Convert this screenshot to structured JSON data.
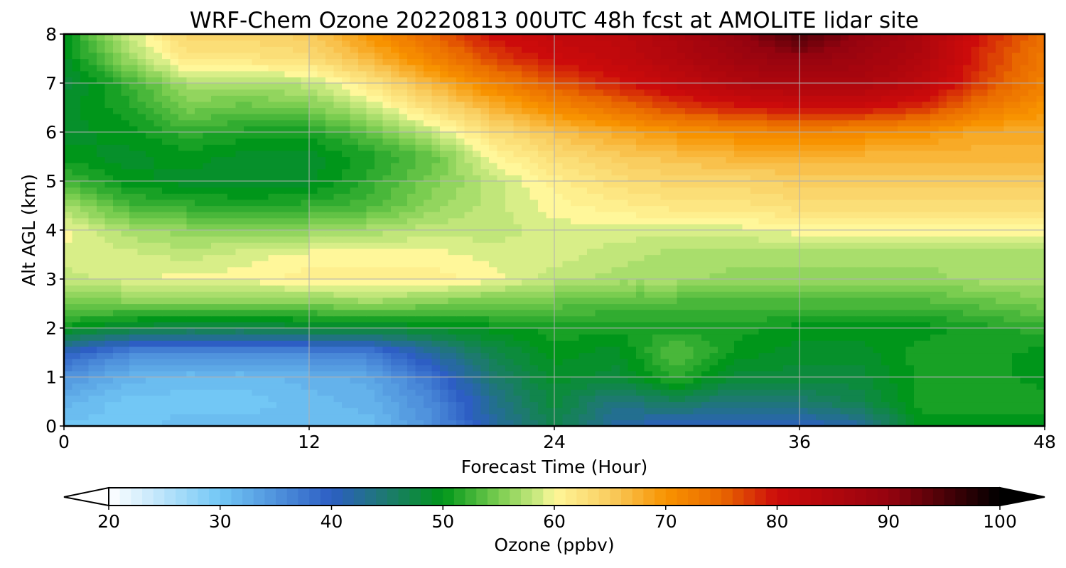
{
  "chart_data": {
    "type": "heatmap",
    "title": "WRF-Chem Ozone  20220813 00UTC 48h fcst at AMOLITE lidar site",
    "xlabel": "Forecast Time (Hour)",
    "ylabel": "Alt AGL (km)",
    "xlim": [
      0,
      48
    ],
    "ylim": [
      0,
      8
    ],
    "xticks": [
      "0",
      "12",
      "24",
      "36",
      "48"
    ],
    "yticks": [
      "0",
      "1",
      "2",
      "3",
      "4",
      "5",
      "6",
      "7",
      "8"
    ],
    "grid": true,
    "x": [
      0,
      3,
      6,
      9,
      12,
      15,
      18,
      21,
      24,
      27,
      30,
      33,
      36,
      39,
      42,
      45,
      48
    ],
    "y": [
      0,
      0.5,
      1,
      1.5,
      2,
      2.5,
      3,
      3.5,
      4,
      4.5,
      5,
      5.5,
      6,
      6.5,
      7,
      7.5,
      8
    ],
    "z": [
      [
        30,
        30,
        31,
        31,
        31,
        31,
        35,
        42,
        47,
        42,
        40,
        40,
        40,
        42,
        50,
        50,
        50
      ],
      [
        32,
        30,
        30,
        30,
        31,
        32,
        36,
        43,
        48,
        44,
        46,
        44,
        45,
        47,
        51,
        51,
        51
      ],
      [
        35,
        32,
        31,
        31,
        32,
        33,
        38,
        45,
        49,
        48,
        52,
        48,
        48,
        48,
        51,
        51,
        50
      ],
      [
        40,
        36,
        35,
        35,
        36,
        37,
        42,
        47,
        50,
        49,
        54,
        50,
        49,
        49,
        51,
        51,
        50
      ],
      [
        50,
        48,
        47,
        47,
        48,
        48,
        49,
        50,
        51,
        51,
        51,
        51,
        50,
        50,
        50,
        51,
        52
      ],
      [
        55,
        55,
        55,
        55,
        55,
        56,
        55,
        54,
        54,
        53,
        53,
        53,
        53,
        53,
        53,
        54,
        55
      ],
      [
        58,
        59,
        60,
        60,
        61,
        61,
        61,
        60,
        58,
        57,
        57,
        56,
        56,
        56,
        56,
        57,
        57
      ],
      [
        59,
        59,
        58,
        59,
        60,
        60,
        60,
        59,
        59,
        58,
        57,
        57,
        57,
        57,
        57,
        57,
        57
      ],
      [
        60,
        57,
        56,
        56,
        56,
        57,
        58,
        58,
        59,
        59,
        59,
        59,
        60,
        60,
        60,
        60,
        60
      ],
      [
        57,
        53,
        52,
        51,
        52,
        53,
        56,
        58,
        60,
        61,
        62,
        62,
        63,
        63,
        63,
        63,
        63
      ],
      [
        53,
        50,
        49,
        49,
        49,
        52,
        55,
        58,
        61,
        63,
        64,
        64,
        65,
        65,
        65,
        65,
        65
      ],
      [
        50,
        49,
        50,
        49,
        49,
        51,
        54,
        60,
        63,
        65,
        66,
        67,
        67,
        67,
        67,
        67,
        67
      ],
      [
        49,
        50,
        52,
        51,
        51,
        54,
        58,
        63,
        66,
        68,
        70,
        71,
        72,
        71,
        70,
        68,
        68
      ],
      [
        49,
        51,
        55,
        54,
        55,
        58,
        63,
        67,
        71,
        74,
        77,
        79,
        80,
        80,
        78,
        73,
        70
      ],
      [
        48,
        52,
        57,
        57,
        58,
        62,
        67,
        72,
        76,
        79,
        82,
        85,
        86,
        86,
        83,
        77,
        72
      ],
      [
        49,
        56,
        62,
        62,
        63,
        67,
        72,
        77,
        80,
        82,
        85,
        88,
        90,
        88,
        85,
        78,
        73
      ],
      [
        50,
        58,
        64,
        64,
        65,
        70,
        75,
        80,
        82,
        83,
        86,
        90,
        95,
        90,
        86,
        79,
        74
      ]
    ],
    "colorbar": {
      "label": "Ozone  (ppbv)",
      "range": [
        20,
        100
      ],
      "ticks": [
        "20",
        "30",
        "40",
        "50",
        "60",
        "70",
        "80",
        "90",
        "100"
      ],
      "stops": [
        [
          20,
          "#ffffff"
        ],
        [
          30,
          "#72c7f5"
        ],
        [
          40,
          "#2d5ec4"
        ],
        [
          45,
          "#1d7a6e"
        ],
        [
          50,
          "#00961a"
        ],
        [
          55,
          "#7acd50"
        ],
        [
          59,
          "#d8ee88"
        ],
        [
          60,
          "#fff79a"
        ],
        [
          65,
          "#f9cd5f"
        ],
        [
          70,
          "#f89300"
        ],
        [
          75,
          "#e96800"
        ],
        [
          80,
          "#cc0b0b"
        ],
        [
          90,
          "#95030f"
        ],
        [
          100,
          "#000000"
        ]
      ],
      "extend": "both"
    }
  }
}
